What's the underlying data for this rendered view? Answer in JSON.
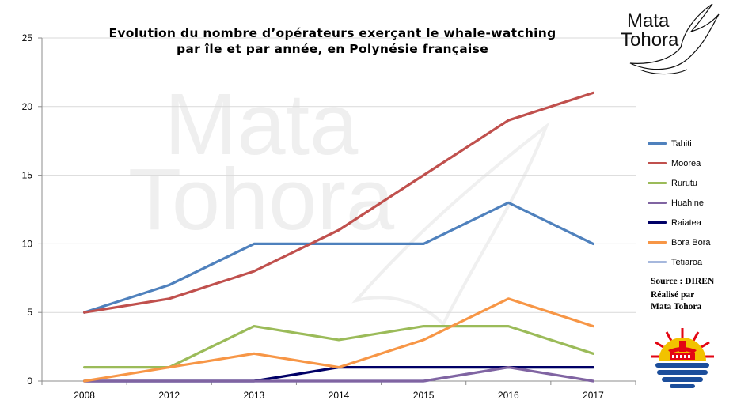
{
  "title_line1": "Evolution du nombre d’opérateurs exerçant le whale-watching",
  "title_line2": "par île et par année, en Polynésie française",
  "logo": {
    "line1": "Mata",
    "line2": "Tohora"
  },
  "watermark": {
    "line1": "Mata",
    "line2": "Tohora"
  },
  "source": {
    "line1": "Source : DIREN",
    "line2": "Réalisé par",
    "line3": "Mata Tohora"
  },
  "chart_data": {
    "type": "line",
    "categories": [
      "2008",
      "2012",
      "2013",
      "2014",
      "2015",
      "2016",
      "2017"
    ],
    "ylim": [
      0,
      25
    ],
    "yticks": [
      0,
      5,
      10,
      15,
      20,
      25
    ],
    "grid": true,
    "legend_position": "right",
    "title": "Evolution du nombre d’opérateurs exerçant le whale-watching par île et par année, en Polynésie française",
    "series": [
      {
        "name": "Tahiti",
        "color": "#4f81bd",
        "values": [
          5,
          7,
          10,
          10,
          10,
          13,
          10
        ]
      },
      {
        "name": "Moorea",
        "color": "#c0504d",
        "values": [
          5,
          6,
          8,
          11,
          15,
          19,
          21
        ]
      },
      {
        "name": "Rurutu",
        "color": "#9bbb59",
        "values": [
          1,
          1,
          4,
          3,
          4,
          4,
          2
        ]
      },
      {
        "name": "Huahine",
        "color": "#8064a2",
        "values": [
          0,
          0,
          0,
          0,
          0,
          1,
          0
        ]
      },
      {
        "name": "Raiatea",
        "color": "#000066",
        "values": [
          0,
          0,
          0,
          1,
          1,
          1,
          1
        ]
      },
      {
        "name": "Bora Bora",
        "color": "#f79646",
        "values": [
          0,
          1,
          2,
          1,
          3,
          6,
          4
        ]
      },
      {
        "name": "Tetiaroa",
        "color": "#a6b8dd",
        "values": [
          0,
          0,
          0,
          0,
          0,
          1,
          1
        ]
      }
    ]
  }
}
